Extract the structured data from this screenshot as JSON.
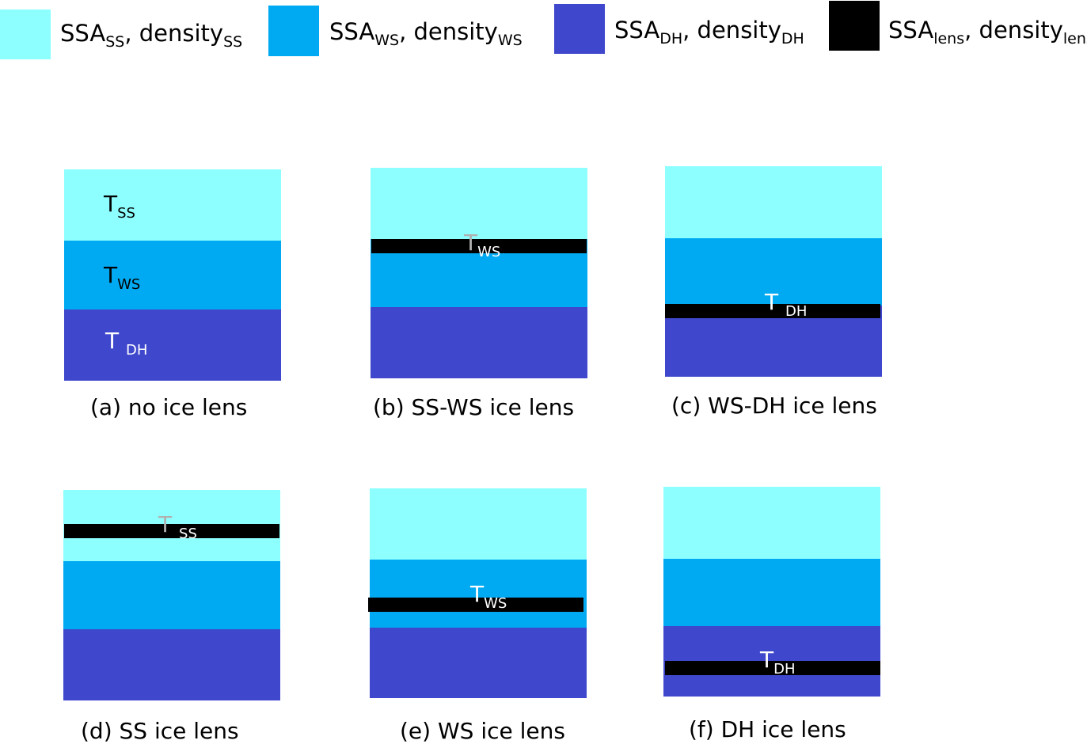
{
  "colors": {
    "ss": "#8effff",
    "ws": "#00aaf2",
    "dh": "#3f48cc",
    "lens": "#000000",
    "label_dark": "#000000",
    "label_light": "#ffffff",
    "label_grey": "#b0b0b0"
  },
  "legend": [
    {
      "id": "ss",
      "base": "SSA",
      "sub1": "SS",
      "sep": ", density",
      "sub2": "SS"
    },
    {
      "id": "ws",
      "base": "SSA",
      "sub1": "WS",
      "sep": ", density",
      "sub2": "WS"
    },
    {
      "id": "dh",
      "base": "SSA",
      "sub1": "DH",
      "sep": ", density",
      "sub2": "DH"
    },
    {
      "id": "lens",
      "base": "SSA",
      "sub1": "lens",
      "sep": ", density",
      "sub2": "lens"
    }
  ],
  "panels": [
    {
      "id": "a",
      "caption": "(a) no ice lens",
      "t_labels": [
        {
          "base": "T",
          "sub": "SS"
        },
        {
          "base": "T",
          "sub": "WS"
        },
        {
          "base": "T",
          "sub": "DH"
        }
      ]
    },
    {
      "id": "b",
      "caption": "(b) SS-WS ice lens",
      "t_labels": [
        {
          "base": "T",
          "sub": "WS"
        }
      ]
    },
    {
      "id": "c",
      "caption": "(c) WS-DH ice lens",
      "t_labels": [
        {
          "base": "T",
          "sub": "DH"
        }
      ]
    },
    {
      "id": "d",
      "caption": "(d) SS ice lens",
      "t_labels": [
        {
          "base": "T",
          "sub": "SS"
        }
      ]
    },
    {
      "id": "e",
      "caption": "(e) WS ice lens",
      "t_labels": [
        {
          "base": "T",
          "sub": "WS"
        }
      ]
    },
    {
      "id": "f",
      "caption": "(f) DH ice lens",
      "t_labels": [
        {
          "base": "T",
          "sub": "DH"
        }
      ]
    }
  ]
}
